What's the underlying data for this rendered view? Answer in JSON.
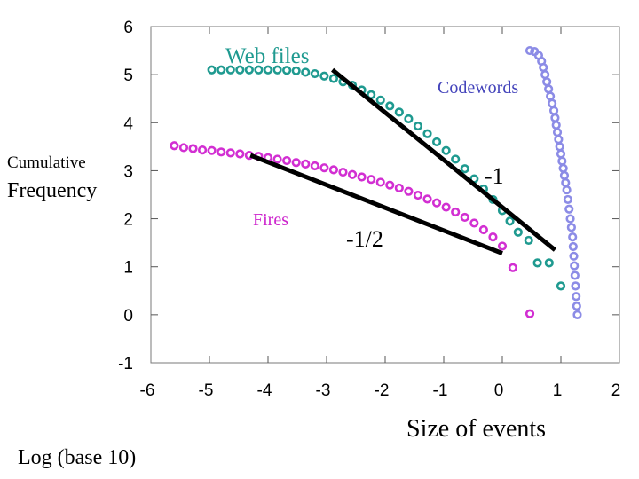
{
  "chart_data": {
    "type": "scatter",
    "xlabel": "Size of events",
    "ylabel": [
      "Cumulative",
      "Frequency"
    ],
    "axis_note": "Log (base 10)",
    "xlim": [
      -6,
      2
    ],
    "ylim": [
      -1,
      6
    ],
    "xticks": [
      "-6",
      "-5",
      "-4",
      "-3",
      "-2",
      "-1",
      "0",
      "1",
      "2"
    ],
    "yticks": [
      "-1",
      "0",
      "1",
      "2",
      "3",
      "4",
      "5",
      "6"
    ],
    "grid": false,
    "series": [
      {
        "name": "Web files",
        "color": "#1f9a90",
        "points": [
          [
            -4.96,
            5.1
          ],
          [
            -4.8,
            5.1
          ],
          [
            -4.64,
            5.1
          ],
          [
            -4.48,
            5.1
          ],
          [
            -4.32,
            5.1
          ],
          [
            -4.16,
            5.1
          ],
          [
            -4.0,
            5.1
          ],
          [
            -3.84,
            5.1
          ],
          [
            -3.68,
            5.09
          ],
          [
            -3.52,
            5.08
          ],
          [
            -3.36,
            5.05
          ],
          [
            -3.2,
            5.02
          ],
          [
            -3.04,
            4.97
          ],
          [
            -2.88,
            4.92
          ],
          [
            -2.72,
            4.85
          ],
          [
            -2.56,
            4.78
          ],
          [
            -2.4,
            4.68
          ],
          [
            -2.24,
            4.58
          ],
          [
            -2.08,
            4.47
          ],
          [
            -1.92,
            4.35
          ],
          [
            -1.76,
            4.22
          ],
          [
            -1.6,
            4.08
          ],
          [
            -1.44,
            3.93
          ],
          [
            -1.28,
            3.77
          ],
          [
            -1.12,
            3.6
          ],
          [
            -0.96,
            3.42
          ],
          [
            -0.8,
            3.24
          ],
          [
            -0.64,
            3.04
          ],
          [
            -0.48,
            2.83
          ],
          [
            -0.32,
            2.62
          ],
          [
            -0.16,
            2.4
          ],
          [
            0.0,
            2.17
          ],
          [
            0.13,
            1.95
          ],
          [
            0.27,
            1.72
          ],
          [
            0.45,
            1.55
          ],
          [
            0.6,
            1.08
          ],
          [
            0.8,
            1.08
          ],
          [
            1.0,
            0.6
          ]
        ]
      },
      {
        "name": "Fires",
        "color": "#d22fd2",
        "points": [
          [
            -5.6,
            3.52
          ],
          [
            -5.44,
            3.48
          ],
          [
            -5.28,
            3.46
          ],
          [
            -5.12,
            3.43
          ],
          [
            -4.96,
            3.42
          ],
          [
            -4.8,
            3.39
          ],
          [
            -4.64,
            3.37
          ],
          [
            -4.48,
            3.35
          ],
          [
            -4.32,
            3.32
          ],
          [
            -4.16,
            3.3
          ],
          [
            -4.0,
            3.27
          ],
          [
            -3.84,
            3.24
          ],
          [
            -3.68,
            3.21
          ],
          [
            -3.52,
            3.17
          ],
          [
            -3.36,
            3.14
          ],
          [
            -3.2,
            3.1
          ],
          [
            -3.04,
            3.06
          ],
          [
            -2.88,
            3.02
          ],
          [
            -2.72,
            2.97
          ],
          [
            -2.56,
            2.92
          ],
          [
            -2.4,
            2.87
          ],
          [
            -2.24,
            2.82
          ],
          [
            -2.08,
            2.76
          ],
          [
            -1.92,
            2.7
          ],
          [
            -1.76,
            2.64
          ],
          [
            -1.6,
            2.57
          ],
          [
            -1.44,
            2.49
          ],
          [
            -1.28,
            2.41
          ],
          [
            -1.12,
            2.33
          ],
          [
            -0.96,
            2.24
          ],
          [
            -0.8,
            2.14
          ],
          [
            -0.64,
            2.03
          ],
          [
            -0.48,
            1.91
          ],
          [
            -0.32,
            1.77
          ],
          [
            -0.16,
            1.62
          ],
          [
            0.0,
            1.43
          ],
          [
            0.18,
            0.98
          ],
          [
            0.47,
            0.02
          ]
        ]
      },
      {
        "name": "Codewords",
        "color": "#8c8ce6",
        "points": [
          [
            0.47,
            5.5
          ],
          [
            0.55,
            5.48
          ],
          [
            0.62,
            5.4
          ],
          [
            0.67,
            5.28
          ],
          [
            0.7,
            5.15
          ],
          [
            0.73,
            5.0
          ],
          [
            0.76,
            4.85
          ],
          [
            0.79,
            4.7
          ],
          [
            0.82,
            4.55
          ],
          [
            0.85,
            4.4
          ],
          [
            0.88,
            4.25
          ],
          [
            0.9,
            4.1
          ],
          [
            0.92,
            3.95
          ],
          [
            0.94,
            3.8
          ],
          [
            0.96,
            3.65
          ],
          [
            0.98,
            3.5
          ],
          [
            1.0,
            3.35
          ],
          [
            1.02,
            3.2
          ],
          [
            1.04,
            3.05
          ],
          [
            1.06,
            2.9
          ],
          [
            1.08,
            2.75
          ],
          [
            1.1,
            2.6
          ],
          [
            1.12,
            2.4
          ],
          [
            1.14,
            2.2
          ],
          [
            1.16,
            2.0
          ],
          [
            1.18,
            1.82
          ],
          [
            1.2,
            1.62
          ],
          [
            1.21,
            1.42
          ],
          [
            1.22,
            1.22
          ],
          [
            1.23,
            1.02
          ],
          [
            1.24,
            0.82
          ],
          [
            1.25,
            0.6
          ],
          [
            1.26,
            0.38
          ],
          [
            1.27,
            0.18
          ],
          [
            1.28,
            0.0
          ]
        ]
      }
    ],
    "fit_lines": [
      {
        "name": "slope -1",
        "label": "-1",
        "from": [
          -2.9,
          5.1
        ],
        "to": [
          0.9,
          1.35
        ]
      },
      {
        "name": "slope -1/2",
        "label": "-1/2",
        "from": [
          -4.3,
          3.32
        ],
        "to": [
          0.0,
          1.28
        ]
      }
    ],
    "annotations": [
      {
        "text": "Web files",
        "color": "#1f9a90"
      },
      {
        "text": "Codewords",
        "color": "#4444bb"
      },
      {
        "text": "Fires",
        "color": "#cc22cc"
      },
      {
        "text": "-1",
        "color": "#000000"
      },
      {
        "text": "-1/2",
        "color": "#000000"
      }
    ]
  }
}
